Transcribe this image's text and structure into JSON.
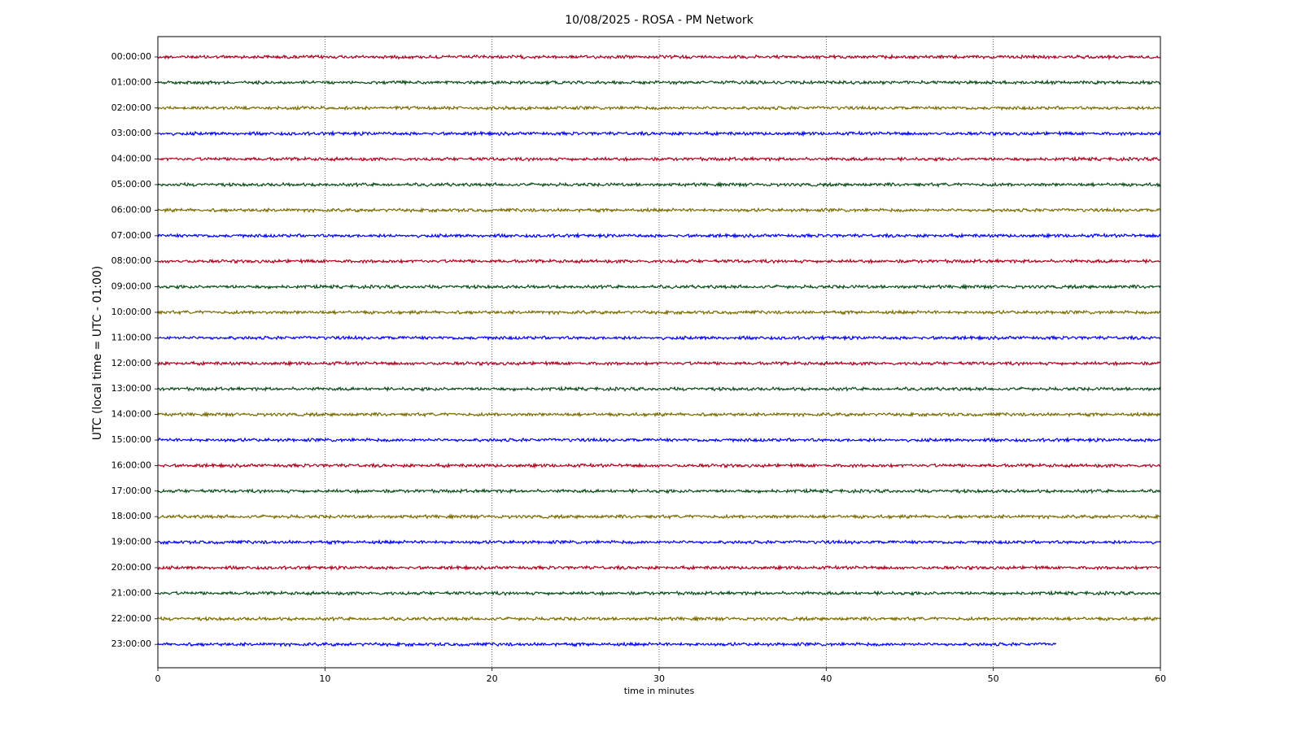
{
  "chart_data": {
    "type": "helicorder",
    "title": "10/08/2025 - ROSA - PM Network",
    "xlabel": "time in minutes",
    "ylabel": "UTC (local time = UTC - 01:00)",
    "categories": [
      "00:00:00",
      "01:00:00",
      "02:00:00",
      "03:00:00",
      "04:00:00",
      "05:00:00",
      "06:00:00",
      "07:00:00",
      "08:00:00",
      "09:00:00",
      "10:00:00",
      "11:00:00",
      "12:00:00",
      "13:00:00",
      "14:00:00",
      "15:00:00",
      "16:00:00",
      "17:00:00",
      "18:00:00",
      "19:00:00",
      "20:00:00",
      "21:00:00",
      "22:00:00",
      "23:00:00"
    ],
    "values": [
      60,
      60,
      60,
      60,
      60,
      60,
      60,
      60,
      60,
      60,
      60,
      60,
      60,
      60,
      60,
      60,
      60,
      60,
      60,
      60,
      60,
      60,
      60,
      53.8
    ],
    "colors": [
      "#b0001e",
      "#0b4d1a",
      "#7a6c00",
      "#0000ff"
    ],
    "xlim": [
      0,
      60
    ],
    "xticks": [
      0,
      10,
      20,
      30,
      40,
      50,
      60
    ],
    "grid": true
  }
}
